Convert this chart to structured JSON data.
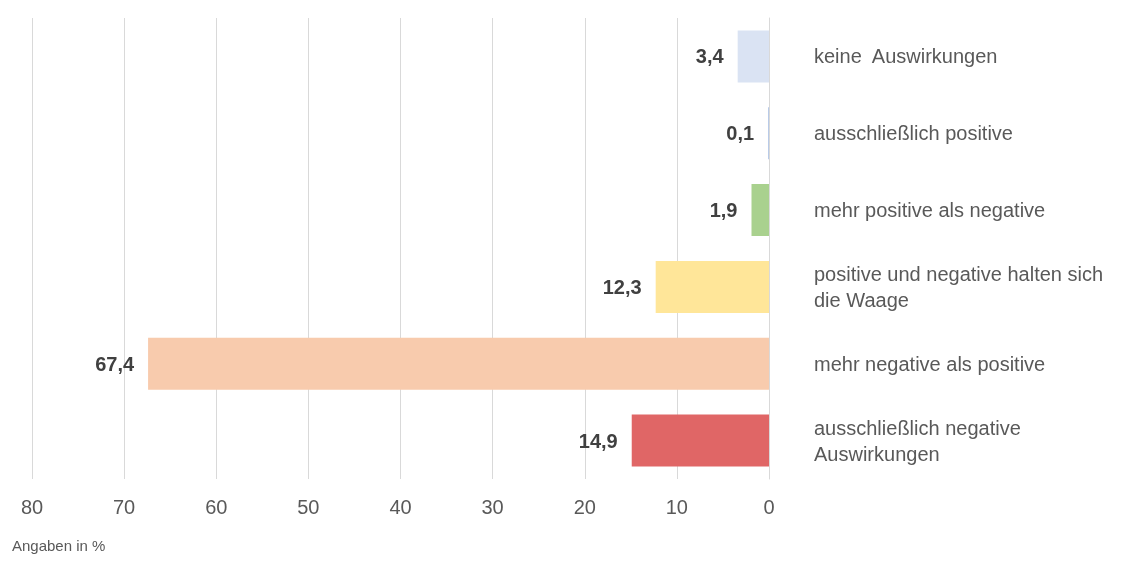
{
  "chart_data": {
    "type": "bar",
    "orientation": "horizontal",
    "xlabel": "Angaben in %",
    "categories": [
      "keine  Auswirkungen",
      "ausschließlich positive",
      "mehr positive als negative",
      "positive und negative halten sich die Waage",
      "mehr negative als positive",
      "ausschließlich negative Auswirkungen"
    ],
    "values": [
      3.4,
      0.1,
      1.9,
      12.3,
      67.4,
      14.9
    ],
    "colors": [
      "#dae3f3",
      "#b4c7e7",
      "#a9d18e",
      "#ffe699",
      "#f8cbad",
      "#e06666"
    ],
    "value_labels": [
      "3,4",
      "0,1",
      "1,9",
      "12,3",
      "67,4",
      "14,9"
    ],
    "xlim": [
      80,
      0
    ],
    "xticks": [
      80,
      70,
      60,
      50,
      40,
      30,
      20,
      10,
      0
    ],
    "grid": "x"
  }
}
